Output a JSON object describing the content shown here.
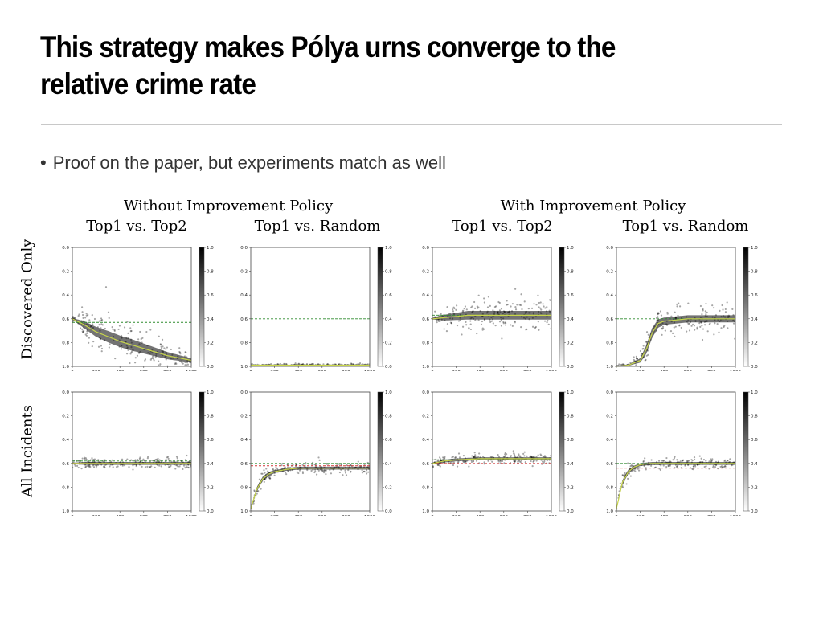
{
  "slide": {
    "title_line1": "This strategy makes Pólya urns converge to the",
    "title_line2": "relative crime rate",
    "bullet": "Proof on the paper, but experiments match as well"
  },
  "figure": {
    "group_left": "Without Improvement Policy",
    "group_right": "With Improvement Policy",
    "col_headers": [
      "Top1 vs. Top2",
      "Top1 vs. Random",
      "Top1 vs. Top2",
      "Top1 vs. Random"
    ],
    "row_headers": [
      "Discovered Only",
      "All Incidents"
    ]
  },
  "colors": {
    "mean_line": "#c8d64a",
    "green_ref": "#2e8b2e",
    "red_ref": "#d23a3a",
    "density": "#000000"
  },
  "chart_data": [
    {
      "type": "heatmap",
      "row": "Discovered Only",
      "col": "Top1 vs. Top2",
      "group": "Without Improvement Policy",
      "x": [
        0,
        100,
        200,
        300,
        400,
        500,
        600,
        700,
        800,
        900,
        1000
      ],
      "mean": [
        0.6,
        0.65,
        0.71,
        0.75,
        0.79,
        0.82,
        0.85,
        0.88,
        0.91,
        0.93,
        0.95
      ],
      "spread": [
        0.01,
        0.05,
        0.07,
        0.08,
        0.08,
        0.08,
        0.07,
        0.06,
        0.05,
        0.04,
        0.03
      ],
      "green_ref": 0.63,
      "red_ref": null,
      "xlim": [
        0,
        1000
      ],
      "ylim": [
        0.0,
        1.0
      ],
      "y_inverted": true,
      "xticks": [
        "0",
        "200",
        "400",
        "600",
        "800",
        "1000"
      ],
      "yticks": [
        "0.0",
        "0.2",
        "0.4",
        "0.6",
        "0.8",
        "1.0"
      ],
      "cbar_ticks": [
        "1.0",
        "0.8",
        "0.6",
        "0.4",
        "0.2",
        "0.0"
      ]
    },
    {
      "type": "heatmap",
      "row": "Discovered Only",
      "col": "Top1 vs. Random",
      "group": "Without Improvement Policy",
      "x": [
        0,
        100,
        200,
        300,
        400,
        500,
        600,
        700,
        800,
        900,
        1000
      ],
      "mean": [
        0.99,
        0.99,
        0.99,
        0.99,
        0.99,
        0.99,
        0.99,
        0.99,
        0.99,
        0.99,
        0.99
      ],
      "spread": [
        0.005,
        0.005,
        0.005,
        0.005,
        0.005,
        0.005,
        0.005,
        0.005,
        0.005,
        0.005,
        0.005
      ],
      "green_ref": 0.6,
      "red_ref": 1.0,
      "xlim": [
        0,
        1000
      ],
      "ylim": [
        0.0,
        1.0
      ],
      "y_inverted": true,
      "xticks": [
        "0",
        "200",
        "400",
        "600",
        "800",
        "1000"
      ],
      "yticks": [
        "0.0",
        "0.2",
        "0.4",
        "0.6",
        "0.8",
        "1.0"
      ],
      "cbar_ticks": [
        "1.0",
        "0.8",
        "0.6",
        "0.4",
        "0.2",
        "0.0"
      ]
    },
    {
      "type": "heatmap",
      "row": "Discovered Only",
      "col": "Top1 vs. Top2",
      "group": "With Improvement Policy",
      "x": [
        0,
        100,
        200,
        300,
        400,
        500,
        600,
        700,
        800,
        900,
        1000
      ],
      "mean": [
        0.6,
        0.59,
        0.58,
        0.57,
        0.57,
        0.57,
        0.57,
        0.57,
        0.57,
        0.57,
        0.57
      ],
      "spread": [
        0.01,
        0.04,
        0.05,
        0.06,
        0.06,
        0.06,
        0.06,
        0.06,
        0.06,
        0.06,
        0.06
      ],
      "green_ref": 0.57,
      "red_ref": 1.0,
      "xlim": [
        0,
        1000
      ],
      "ylim": [
        0.0,
        1.0
      ],
      "y_inverted": true,
      "xticks": [
        "0",
        "200",
        "400",
        "600",
        "800",
        "1000"
      ],
      "yticks": [
        "0.0",
        "0.2",
        "0.4",
        "0.6",
        "0.8",
        "1.0"
      ],
      "cbar_ticks": [
        "1.0",
        "0.8",
        "0.6",
        "0.4",
        "0.2",
        "0.0"
      ]
    },
    {
      "type": "heatmap",
      "row": "Discovered Only",
      "col": "Top1 vs. Random",
      "group": "With Improvement Policy",
      "x": [
        0,
        100,
        200,
        250,
        300,
        350,
        400,
        500,
        600,
        800,
        1000
      ],
      "mean": [
        1.0,
        0.99,
        0.95,
        0.86,
        0.72,
        0.64,
        0.62,
        0.61,
        0.6,
        0.6,
        0.6
      ],
      "spread": [
        0.005,
        0.01,
        0.03,
        0.06,
        0.07,
        0.06,
        0.05,
        0.05,
        0.05,
        0.05,
        0.05
      ],
      "green_ref": 0.6,
      "red_ref": 1.0,
      "xlim": [
        0,
        1000
      ],
      "ylim": [
        0.0,
        1.0
      ],
      "y_inverted": true,
      "xticks": [
        "0",
        "200",
        "400",
        "600",
        "800",
        "1000"
      ],
      "yticks": [
        "0.0",
        "0.2",
        "0.4",
        "0.6",
        "0.8",
        "1.0"
      ],
      "cbar_ticks": [
        "1.0",
        "0.8",
        "0.6",
        "0.4",
        "0.2",
        "0.0"
      ]
    },
    {
      "type": "heatmap",
      "row": "All Incidents",
      "col": "Top1 vs. Top2",
      "group": "Without Improvement Policy",
      "x": [
        0,
        100,
        200,
        300,
        400,
        500,
        600,
        700,
        800,
        900,
        1000
      ],
      "mean": [
        0.6,
        0.6,
        0.6,
        0.6,
        0.6,
        0.6,
        0.6,
        0.6,
        0.6,
        0.6,
        0.6
      ],
      "spread": [
        0.01,
        0.02,
        0.02,
        0.02,
        0.02,
        0.02,
        0.02,
        0.02,
        0.02,
        0.02,
        0.02
      ],
      "green_ref": 0.58,
      "red_ref": 0.6,
      "xlim": [
        0,
        1000
      ],
      "ylim": [
        0.0,
        1.0
      ],
      "y_inverted": true,
      "xticks": [
        "0",
        "200",
        "400",
        "600",
        "800",
        "1000"
      ],
      "yticks": [
        "0.0",
        "0.2",
        "0.4",
        "0.6",
        "0.8",
        "1.0"
      ],
      "cbar_ticks": [
        "1.0",
        "0.8",
        "0.6",
        "0.4",
        "0.2",
        "0.0"
      ]
    },
    {
      "type": "heatmap",
      "row": "All Incidents",
      "col": "Top1 vs. Random",
      "group": "Without Improvement Policy",
      "x": [
        0,
        50,
        100,
        150,
        200,
        300,
        400,
        500,
        600,
        800,
        1000
      ],
      "mean": [
        0.98,
        0.82,
        0.73,
        0.69,
        0.67,
        0.65,
        0.64,
        0.64,
        0.64,
        0.64,
        0.64
      ],
      "spread": [
        0.01,
        0.03,
        0.03,
        0.03,
        0.02,
        0.02,
        0.02,
        0.02,
        0.02,
        0.02,
        0.02
      ],
      "green_ref": 0.6,
      "red_ref": 0.62,
      "xlim": [
        0,
        1000
      ],
      "ylim": [
        0.0,
        1.0
      ],
      "y_inverted": true,
      "xticks": [
        "0",
        "200",
        "400",
        "600",
        "800",
        "1000"
      ],
      "yticks": [
        "0.0",
        "0.2",
        "0.4",
        "0.6",
        "0.8",
        "1.0"
      ],
      "cbar_ticks": [
        "1.0",
        "0.8",
        "0.6",
        "0.4",
        "0.2",
        "0.0"
      ]
    },
    {
      "type": "heatmap",
      "row": "All Incidents",
      "col": "Top1 vs. Top2",
      "group": "With Improvement Policy",
      "x": [
        0,
        100,
        200,
        300,
        400,
        500,
        600,
        700,
        800,
        900,
        1000
      ],
      "mean": [
        0.6,
        0.58,
        0.57,
        0.565,
        0.56,
        0.56,
        0.56,
        0.56,
        0.56,
        0.56,
        0.56
      ],
      "spread": [
        0.01,
        0.02,
        0.02,
        0.02,
        0.02,
        0.02,
        0.02,
        0.02,
        0.02,
        0.02,
        0.02
      ],
      "green_ref": 0.57,
      "red_ref": 0.6,
      "xlim": [
        0,
        1000
      ],
      "ylim": [
        0.0,
        1.0
      ],
      "y_inverted": true,
      "xticks": [
        "0",
        "200",
        "400",
        "600",
        "800",
        "1000"
      ],
      "yticks": [
        "0.0",
        "0.2",
        "0.4",
        "0.6",
        "0.8",
        "1.0"
      ],
      "cbar_ticks": [
        "1.0",
        "0.8",
        "0.6",
        "0.4",
        "0.2",
        "0.0"
      ]
    },
    {
      "type": "heatmap",
      "row": "All Incidents",
      "col": "Top1 vs. Random",
      "group": "With Improvement Policy",
      "x": [
        0,
        50,
        100,
        150,
        200,
        300,
        400,
        500,
        600,
        800,
        1000
      ],
      "mean": [
        0.98,
        0.76,
        0.67,
        0.63,
        0.61,
        0.6,
        0.6,
        0.6,
        0.6,
        0.6,
        0.6
      ],
      "spread": [
        0.01,
        0.03,
        0.03,
        0.02,
        0.02,
        0.02,
        0.02,
        0.02,
        0.02,
        0.02,
        0.02
      ],
      "green_ref": 0.6,
      "red_ref": 0.64,
      "xlim": [
        0,
        1000
      ],
      "ylim": [
        0.0,
        1.0
      ],
      "y_inverted": true,
      "xticks": [
        "0",
        "200",
        "400",
        "600",
        "800",
        "1000"
      ],
      "yticks": [
        "0.0",
        "0.2",
        "0.4",
        "0.6",
        "0.8",
        "1.0"
      ],
      "cbar_ticks": [
        "1.0",
        "0.8",
        "0.6",
        "0.4",
        "0.2",
        "0.0"
      ]
    }
  ]
}
